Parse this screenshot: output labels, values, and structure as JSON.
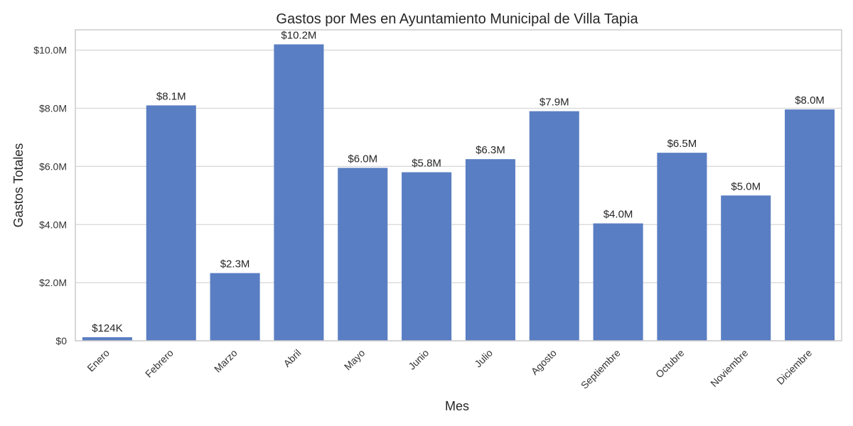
{
  "chart_data": {
    "type": "bar",
    "title": "Gastos por Mes en Ayuntamiento Municipal de Villa Tapia",
    "xlabel": "Mes",
    "ylabel": "Gastos Totales",
    "categories": [
      "Enero",
      "Febrero",
      "Marzo",
      "Abril",
      "Mayo",
      "Junio",
      "Julio",
      "Agosto",
      "Septiembre",
      "Octubre",
      "Noviembre",
      "Diciembre"
    ],
    "values": [
      124000,
      8100000,
      2330000,
      10200000,
      5950000,
      5800000,
      6250000,
      7900000,
      4040000,
      6470000,
      5000000,
      7960000
    ],
    "value_labels": [
      "$124K",
      "$8.1M",
      "$2.3M",
      "$10.2M",
      "$6.0M",
      "$5.8M",
      "$6.3M",
      "$7.9M",
      "$4.0M",
      "$6.5M",
      "$5.0M",
      "$8.0M"
    ],
    "yticks": [
      0,
      2000000,
      4000000,
      6000000,
      8000000,
      10000000
    ],
    "ytick_labels": [
      "$0",
      "$2.0M",
      "$4.0M",
      "$6.0M",
      "$8.0M",
      "$10.0M"
    ],
    "ylim": [
      0,
      10700000
    ],
    "grid": true,
    "bar_color": "#5a7ec3"
  }
}
